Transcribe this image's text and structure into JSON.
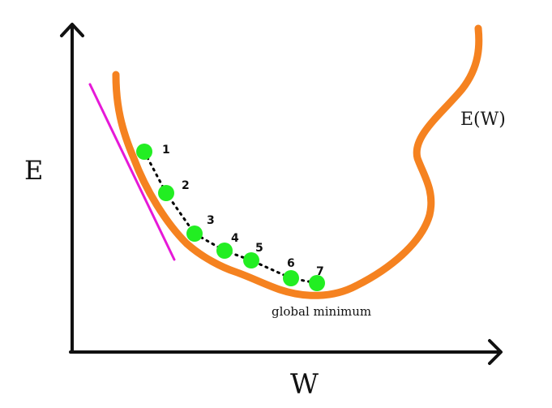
{
  "diagram": {
    "y_axis_label": "E",
    "x_axis_label": "W",
    "curve_label": "E(W)",
    "minimum_label": "global minimum",
    "steps": [
      "1",
      "2",
      "3",
      "4",
      "5",
      "6",
      "7"
    ],
    "colors": {
      "axes": "#111111",
      "curve": "#f58220",
      "tangent": "#e619d8",
      "points": "#22ee22",
      "path": "#000000"
    }
  }
}
